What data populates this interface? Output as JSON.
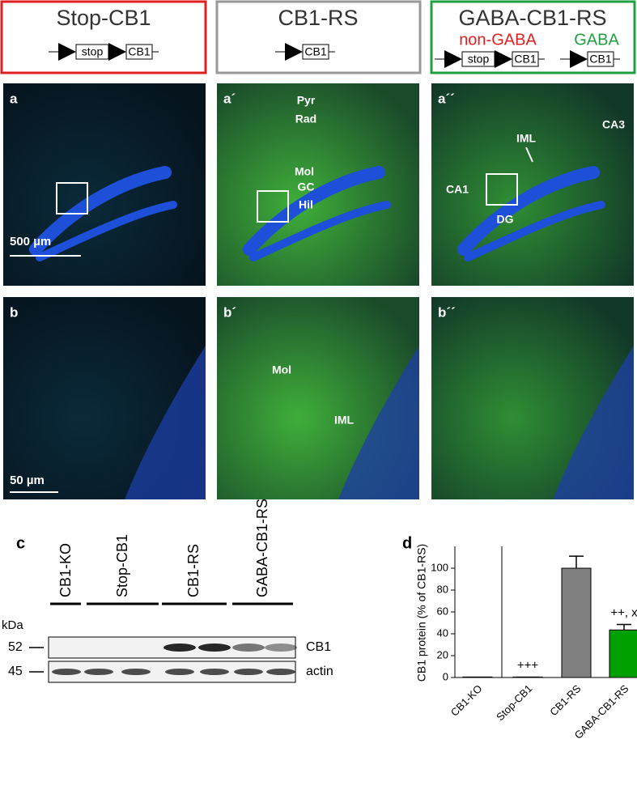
{
  "headers": [
    {
      "title": "Stop-CB1",
      "construct": [
        "stop",
        "CB1"
      ]
    },
    {
      "title": "CB1-RS",
      "construct": [
        "CB1"
      ]
    },
    {
      "title": "GABA-CB1-RS",
      "groups": [
        {
          "label": "non-GABA",
          "construct": [
            "stop",
            "CB1"
          ]
        },
        {
          "label": "GABA",
          "construct": [
            "CB1"
          ]
        }
      ]
    }
  ],
  "micrographs": [
    {
      "label": "a",
      "scale": "500 µm"
    },
    {
      "label": "a´",
      "annotations": [
        "Pyr",
        "Rad",
        "Mol",
        "GC",
        "Hil"
      ]
    },
    {
      "label": "a´´",
      "annotations": [
        "CA3",
        "IML",
        "CA1",
        "DG"
      ]
    },
    {
      "label": "b",
      "scale": "50 µm"
    },
    {
      "label": "b´",
      "annotations": [
        "Mol",
        "IML"
      ]
    },
    {
      "label": "b´´"
    }
  ],
  "western_blot": {
    "label": "c",
    "lanes": [
      "CB1-KO",
      "Stop-CB1",
      "CB1-RS",
      "GABA-CB1-RS"
    ],
    "unit": "kDa",
    "markers": [
      {
        "value": 52,
        "band": "CB1"
      },
      {
        "value": 45,
        "band": "actin"
      }
    ]
  },
  "chart_data": {
    "type": "bar",
    "label": "d",
    "ylabel": "CB1 protein (% of CB1-RS)",
    "categories": [
      "CB1-KO",
      "Stop-CB1",
      "CB1-RS",
      "GABA-CB1-RS"
    ],
    "values": [
      0.5,
      0.5,
      100,
      43.5
    ],
    "errors": [
      0,
      0,
      11,
      5
    ],
    "colors": [
      "#000000",
      "#000000",
      "#808080",
      "#00a000"
    ],
    "annotations": [
      null,
      "+++",
      null,
      "++, x"
    ],
    "ylim": [
      0,
      120
    ],
    "yticks": [
      0,
      20,
      40,
      60,
      80,
      100
    ]
  }
}
